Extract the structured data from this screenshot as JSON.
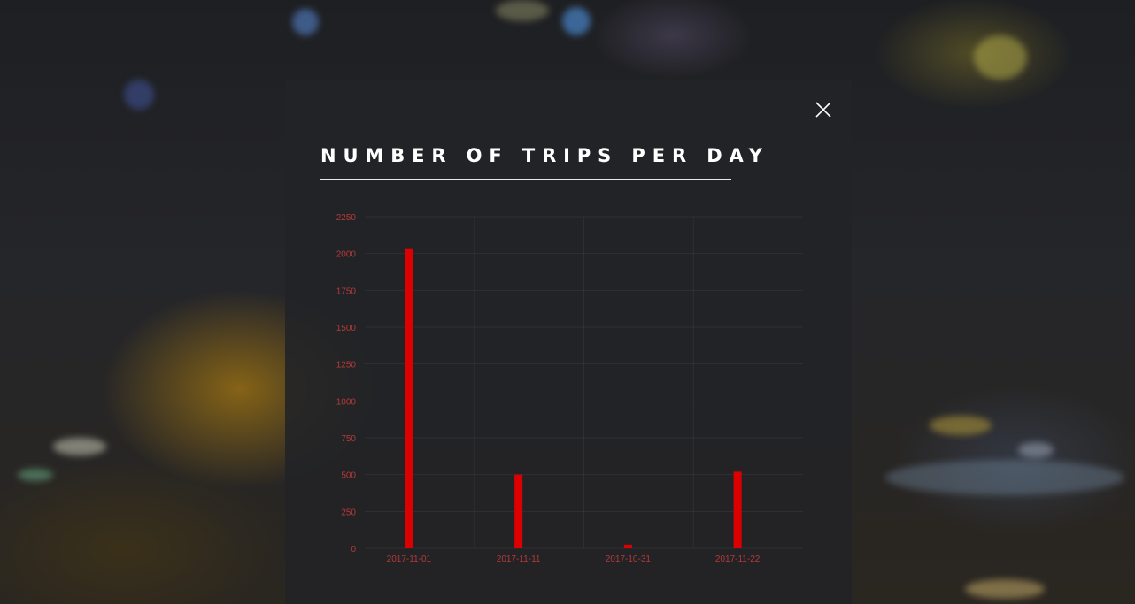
{
  "modal": {
    "title": "NUMBER OF TRIPS PER DAY"
  },
  "icons": {
    "close": "close-icon"
  },
  "colors": {
    "bar": "#dd0000",
    "tick_label": "#b23a3a",
    "title": "#ffffff",
    "modal_bg": "#222327"
  },
  "chart_data": {
    "type": "bar",
    "title": "NUMBER OF TRIPS PER DAY",
    "xlabel": "",
    "ylabel": "",
    "categories": [
      "2017-11-01",
      "2017-11-11",
      "2017-10-31",
      "2017-11-22"
    ],
    "values": [
      2030,
      500,
      25,
      520
    ],
    "ylim": [
      0,
      2250
    ],
    "yticks": [
      0,
      250,
      500,
      750,
      1000,
      1250,
      1500,
      1750,
      2000,
      2250
    ],
    "grid": true,
    "legend": "none"
  }
}
